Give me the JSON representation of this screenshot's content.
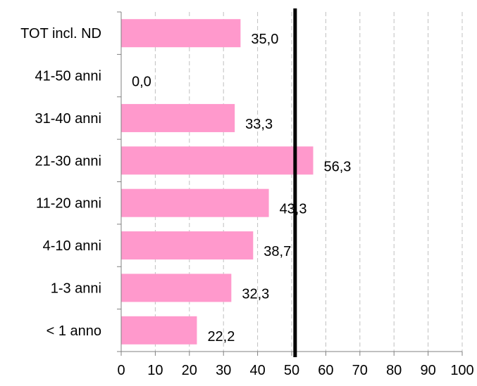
{
  "chart_data": {
    "type": "bar",
    "orientation": "horizontal",
    "categories": [
      "TOT incl. ND",
      "41-50 anni",
      "31-40 anni",
      "21-30 anni",
      "11-20 anni",
      "4-10 anni",
      "1-3 anni",
      "< 1 anno"
    ],
    "values": [
      35.0,
      0.0,
      33.3,
      56.3,
      43.3,
      38.7,
      32.3,
      22.2
    ],
    "data_labels": [
      "35,0",
      "0,0",
      "33,3",
      "56,3",
      "43,3",
      "38,7",
      "32,3",
      "22,2"
    ],
    "xlim": [
      0,
      100
    ],
    "x_ticks": [
      0,
      10,
      20,
      30,
      40,
      50,
      60,
      70,
      80,
      90,
      100
    ],
    "x_tick_labels": [
      "0",
      "10",
      "20",
      "30",
      "40",
      "50",
      "60",
      "70",
      "80",
      "90",
      "100"
    ],
    "reference_line_x": 51,
    "grid": "vertical dashed",
    "colors": {
      "bar": "#ff99cc",
      "grid": "#c0c0c0",
      "axis": "#808080",
      "reference_line": "#000000"
    }
  }
}
